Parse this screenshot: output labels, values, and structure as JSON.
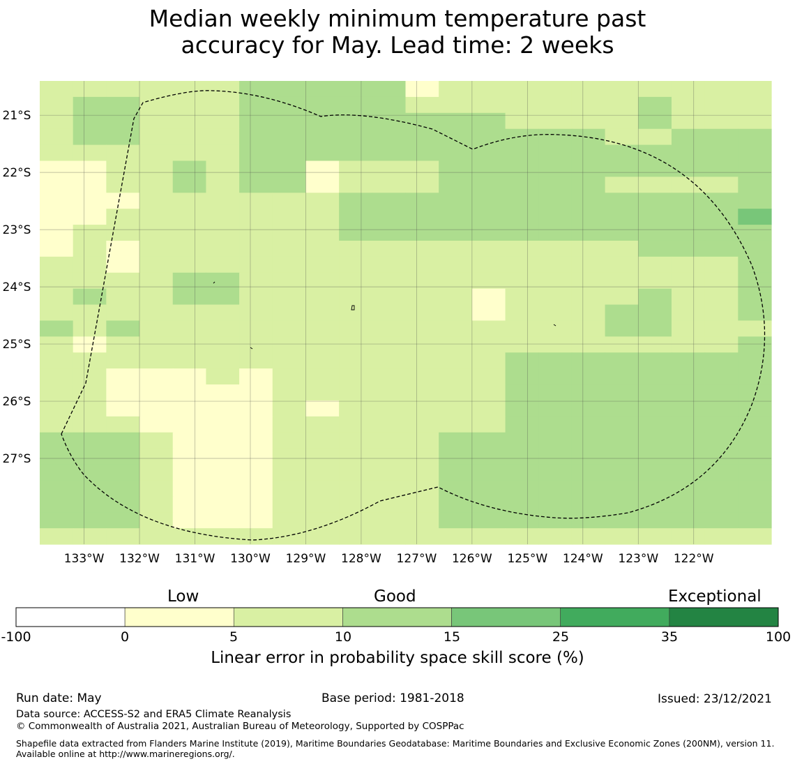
{
  "title_line1": "Median weekly minimum temperature past",
  "title_line2": "accuracy for May. Lead time: 2 weeks",
  "map": {
    "lon_range": [
      -133.8,
      -120.6
    ],
    "lat_range": [
      -28.5,
      -20.4
    ],
    "lon_ticks": [
      {
        "value": -133,
        "label": "133°W"
      },
      {
        "value": -132,
        "label": "132°W"
      },
      {
        "value": -131,
        "label": "131°W"
      },
      {
        "value": -130,
        "label": "130°W"
      },
      {
        "value": -129,
        "label": "129°W"
      },
      {
        "value": -128,
        "label": "128°W"
      },
      {
        "value": -127,
        "label": "127°W"
      },
      {
        "value": -126,
        "label": "126°W"
      },
      {
        "value": -125,
        "label": "125°W"
      },
      {
        "value": -124,
        "label": "124°W"
      },
      {
        "value": -123,
        "label": "123°W"
      },
      {
        "value": -122,
        "label": "122°W"
      }
    ],
    "lat_ticks": [
      {
        "value": -21,
        "label": "21°S"
      },
      {
        "value": -22,
        "label": "22°S"
      },
      {
        "value": -23,
        "label": "23°S"
      },
      {
        "value": -24,
        "label": "24°S"
      },
      {
        "value": -25,
        "label": "25°S"
      },
      {
        "value": -26,
        "label": "26°S"
      },
      {
        "value": -27,
        "label": "27°S"
      }
    ],
    "grid_note": "cell categories: 1 = 0-5, 2 = 5-10, 3 = 10-15, 4 = 15-25",
    "grid": [
      "2222223333312222222222",
      "2332223333322222223222",
      "2332223333333322223222",
      "2332223333333333322333",
      "2222223333333333333333",
      "1122323312223333333333",
      "1122323312223333322223",
      "1112222223333333333333",
      "1122222223333333333334",
      "1222222223333333333333",
      "1212222222222222223333",
      "2212222222222222222223",
      "2222332222222222222223",
      "2322332222222122223223",
      "2222222222222122233223",
      "3232222222222222233222",
      "2122222222222222222223",
      "2222222222222233333333",
      "2211121222222233333333",
      "2211111222222233333333",
      "2211111212222233333333",
      "2221111222222233333333",
      "3332111222223333333333",
      "3332111222223333333333",
      "3332111222223333333333",
      "3332111222223333333333",
      "3332111222223333333333",
      "3332111222223333333333",
      "2222222222222222222222"
    ]
  },
  "colorbar": {
    "categories": [
      "Low",
      "Good",
      "Exceptional"
    ],
    "ticks": [
      "-100",
      "0",
      "5",
      "10",
      "15",
      "25",
      "35",
      "100"
    ],
    "colors": [
      "#ffffff",
      "#ffffcc",
      "#d9f0a3",
      "#addd8e",
      "#78c679",
      "#41ab5d",
      "#238443"
    ],
    "label": "Linear error in probability space skill score (%)"
  },
  "footer": {
    "run_date": "Run date: May",
    "base_period": "Base period: 1981-2018",
    "issued": "Issued: 23/12/2021",
    "data_source": "Data source: ACCESS-S2 and ERA5 Climate Reanalysis",
    "copyright": "© Commonwealth of Australia 2021, Australian Bureau of Meteorology, Supported by COSPPac",
    "shapefile": "Shapefile data extracted from Flanders Marine Institute (2019), Maritime Boundaries Geodatabase: Maritime Boundaries and Exclusive Economic Zones (200NM), version 11. Available online at http://www.marineregions.org/."
  }
}
